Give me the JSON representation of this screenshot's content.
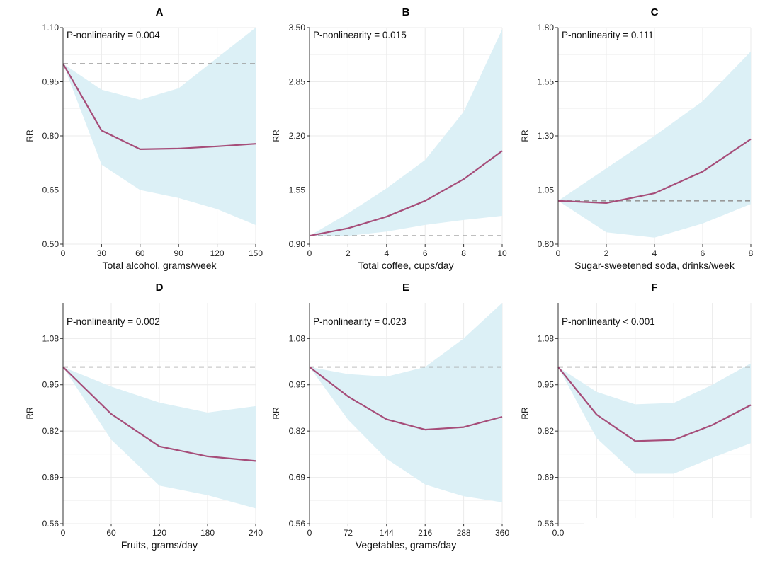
{
  "figure": {
    "colors": {
      "line": "#a64d79",
      "band": "#dcf0f6",
      "reference": "#999999",
      "grid": "#ebebeb"
    }
  },
  "chart_data": [
    {
      "panel": "A",
      "type": "line",
      "title": "A",
      "annotation": "P-nonlinearity = 0.004",
      "xlabel": "Total alcohol, grams/week",
      "ylabel": "RR",
      "xlim": [
        0,
        150
      ],
      "ylim": [
        0.5,
        1.1
      ],
      "xticks": [
        0,
        30,
        60,
        90,
        120,
        150
      ],
      "xtick_labels": [
        "0",
        "30",
        "60",
        "90",
        "120",
        "150"
      ],
      "yticks": [
        0.5,
        0.65,
        0.8,
        0.95,
        1.1
      ],
      "ytick_labels": [
        "0.50",
        "0.65",
        "0.80",
        "0.95",
        "1.10"
      ],
      "reference": 1.0,
      "x": [
        0,
        30,
        60,
        90,
        120,
        150
      ],
      "y": [
        1.0,
        0.815,
        0.763,
        0.765,
        0.771,
        0.778
      ],
      "lower": [
        1.0,
        0.72,
        0.65,
        0.628,
        0.597,
        0.553
      ],
      "upper": [
        1.0,
        0.928,
        0.9,
        0.932,
        1.016,
        1.1
      ]
    },
    {
      "panel": "B",
      "type": "line",
      "title": "B",
      "annotation": "P-nonlinearity = 0.015",
      "xlabel": "Total coffee, cups/day",
      "ylabel": "RR",
      "xlim": [
        0,
        10
      ],
      "ylim": [
        0.9,
        3.5
      ],
      "xticks": [
        0,
        2,
        4,
        6,
        8,
        10
      ],
      "xtick_labels": [
        "0",
        "2",
        "4",
        "6",
        "8",
        "10"
      ],
      "yticks": [
        0.9,
        1.55,
        2.2,
        2.85,
        3.5
      ],
      "ytick_labels": [
        "0.90",
        "1.55",
        "2.20",
        "2.85",
        "3.50"
      ],
      "reference": 1.0,
      "x": [
        0,
        2,
        4,
        6,
        8,
        10
      ],
      "y": [
        1.0,
        1.09,
        1.23,
        1.42,
        1.68,
        2.02
      ],
      "lower": [
        1.0,
        1.0,
        1.05,
        1.13,
        1.19,
        1.24
      ],
      "upper": [
        1.0,
        1.27,
        1.57,
        1.91,
        2.49,
        3.48
      ]
    },
    {
      "panel": "C",
      "type": "line",
      "title": "C",
      "annotation": "P-nonlinearity = 0.111",
      "xlabel": "Sugar-sweetened soda, drinks/week",
      "ylabel": "RR",
      "xlim": [
        0,
        8
      ],
      "ylim": [
        0.8,
        1.8
      ],
      "xticks": [
        0,
        2,
        4,
        6,
        8
      ],
      "xtick_labels": [
        "0",
        "2",
        "4",
        "6",
        "8"
      ],
      "yticks": [
        0.8,
        1.05,
        1.3,
        1.55,
        1.8
      ],
      "ytick_labels": [
        "0.80",
        "1.05",
        "1.30",
        "1.55",
        "1.80"
      ],
      "reference": 1.0,
      "x": [
        0,
        2,
        4,
        6,
        8
      ],
      "y": [
        1.0,
        0.99,
        1.035,
        1.135,
        1.285
      ],
      "lower": [
        1.0,
        0.855,
        0.83,
        0.895,
        0.985
      ],
      "upper": [
        1.0,
        1.15,
        1.3,
        1.46,
        1.69
      ]
    },
    {
      "panel": "D",
      "type": "line",
      "title": "D",
      "annotation": "P-nonlinearity = 0.002",
      "xlabel": "Fruits, grams/day",
      "ylabel": "RR",
      "xlim": [
        0,
        240
      ],
      "ylim": [
        0.56,
        1.18
      ],
      "xticks": [
        0,
        60,
        120,
        180,
        240
      ],
      "xtick_labels": [
        "0",
        "60",
        "120",
        "180",
        "240"
      ],
      "yticks": [
        0.56,
        0.69,
        0.82,
        0.95,
        1.08
      ],
      "ytick_labels": [
        "0.56",
        "0.69",
        "0.82",
        "0.95",
        "1.08"
      ],
      "reference": 1.0,
      "x": [
        0,
        60,
        120,
        180,
        240
      ],
      "y": [
        1.0,
        0.868,
        0.777,
        0.749,
        0.736
      ],
      "lower": [
        1.0,
        0.796,
        0.667,
        0.64,
        0.603
      ],
      "upper": [
        1.0,
        0.945,
        0.9,
        0.872,
        0.89
      ]
    },
    {
      "panel": "E",
      "type": "line",
      "title": "E",
      "annotation": "P-nonlinearity = 0.023",
      "xlabel": "Vegetables, grams/day",
      "ylabel": "RR",
      "xlim": [
        0,
        360
      ],
      "ylim": [
        0.56,
        1.18
      ],
      "xticks": [
        0,
        72,
        144,
        216,
        288,
        360
      ],
      "xtick_labels": [
        "0",
        "72",
        "144",
        "216",
        "288",
        "360"
      ],
      "yticks": [
        0.56,
        0.69,
        0.82,
        0.95,
        1.08
      ],
      "ytick_labels": [
        "0.56",
        "0.69",
        "0.82",
        "0.95",
        "1.08"
      ],
      "reference": 1.0,
      "x": [
        0,
        72,
        144,
        216,
        288,
        360
      ],
      "y": [
        1.0,
        0.917,
        0.853,
        0.824,
        0.831,
        0.86
      ],
      "lower": [
        1.0,
        0.852,
        0.742,
        0.67,
        0.637,
        0.62
      ],
      "upper": [
        1.0,
        0.98,
        0.973,
        1.0,
        1.08,
        1.18
      ]
    },
    {
      "panel": "F",
      "type": "line",
      "title": "F",
      "annotation": "P-nonlinearity < 0.001",
      "xlabel": "",
      "ylabel": "RR",
      "xlim": [
        0,
        5
      ],
      "ylim": [
        0.56,
        1.18
      ],
      "xticks": [
        0
      ],
      "xtick_labels": [
        "0.0"
      ],
      "yticks": [
        0.56,
        0.69,
        0.82,
        0.95,
        1.08
      ],
      "ytick_labels": [
        "0.56",
        "0.69",
        "0.82",
        "0.95",
        "1.08"
      ],
      "reference": 1.0,
      "x": [
        0,
        1,
        2,
        3,
        4,
        5
      ],
      "y": [
        1.0,
        0.866,
        0.792,
        0.795,
        0.837,
        0.893
      ],
      "lower": [
        1.0,
        0.8,
        0.7,
        0.7,
        0.745,
        0.786
      ],
      "upper": [
        1.0,
        0.93,
        0.895,
        0.899,
        0.95,
        1.01
      ]
    }
  ]
}
